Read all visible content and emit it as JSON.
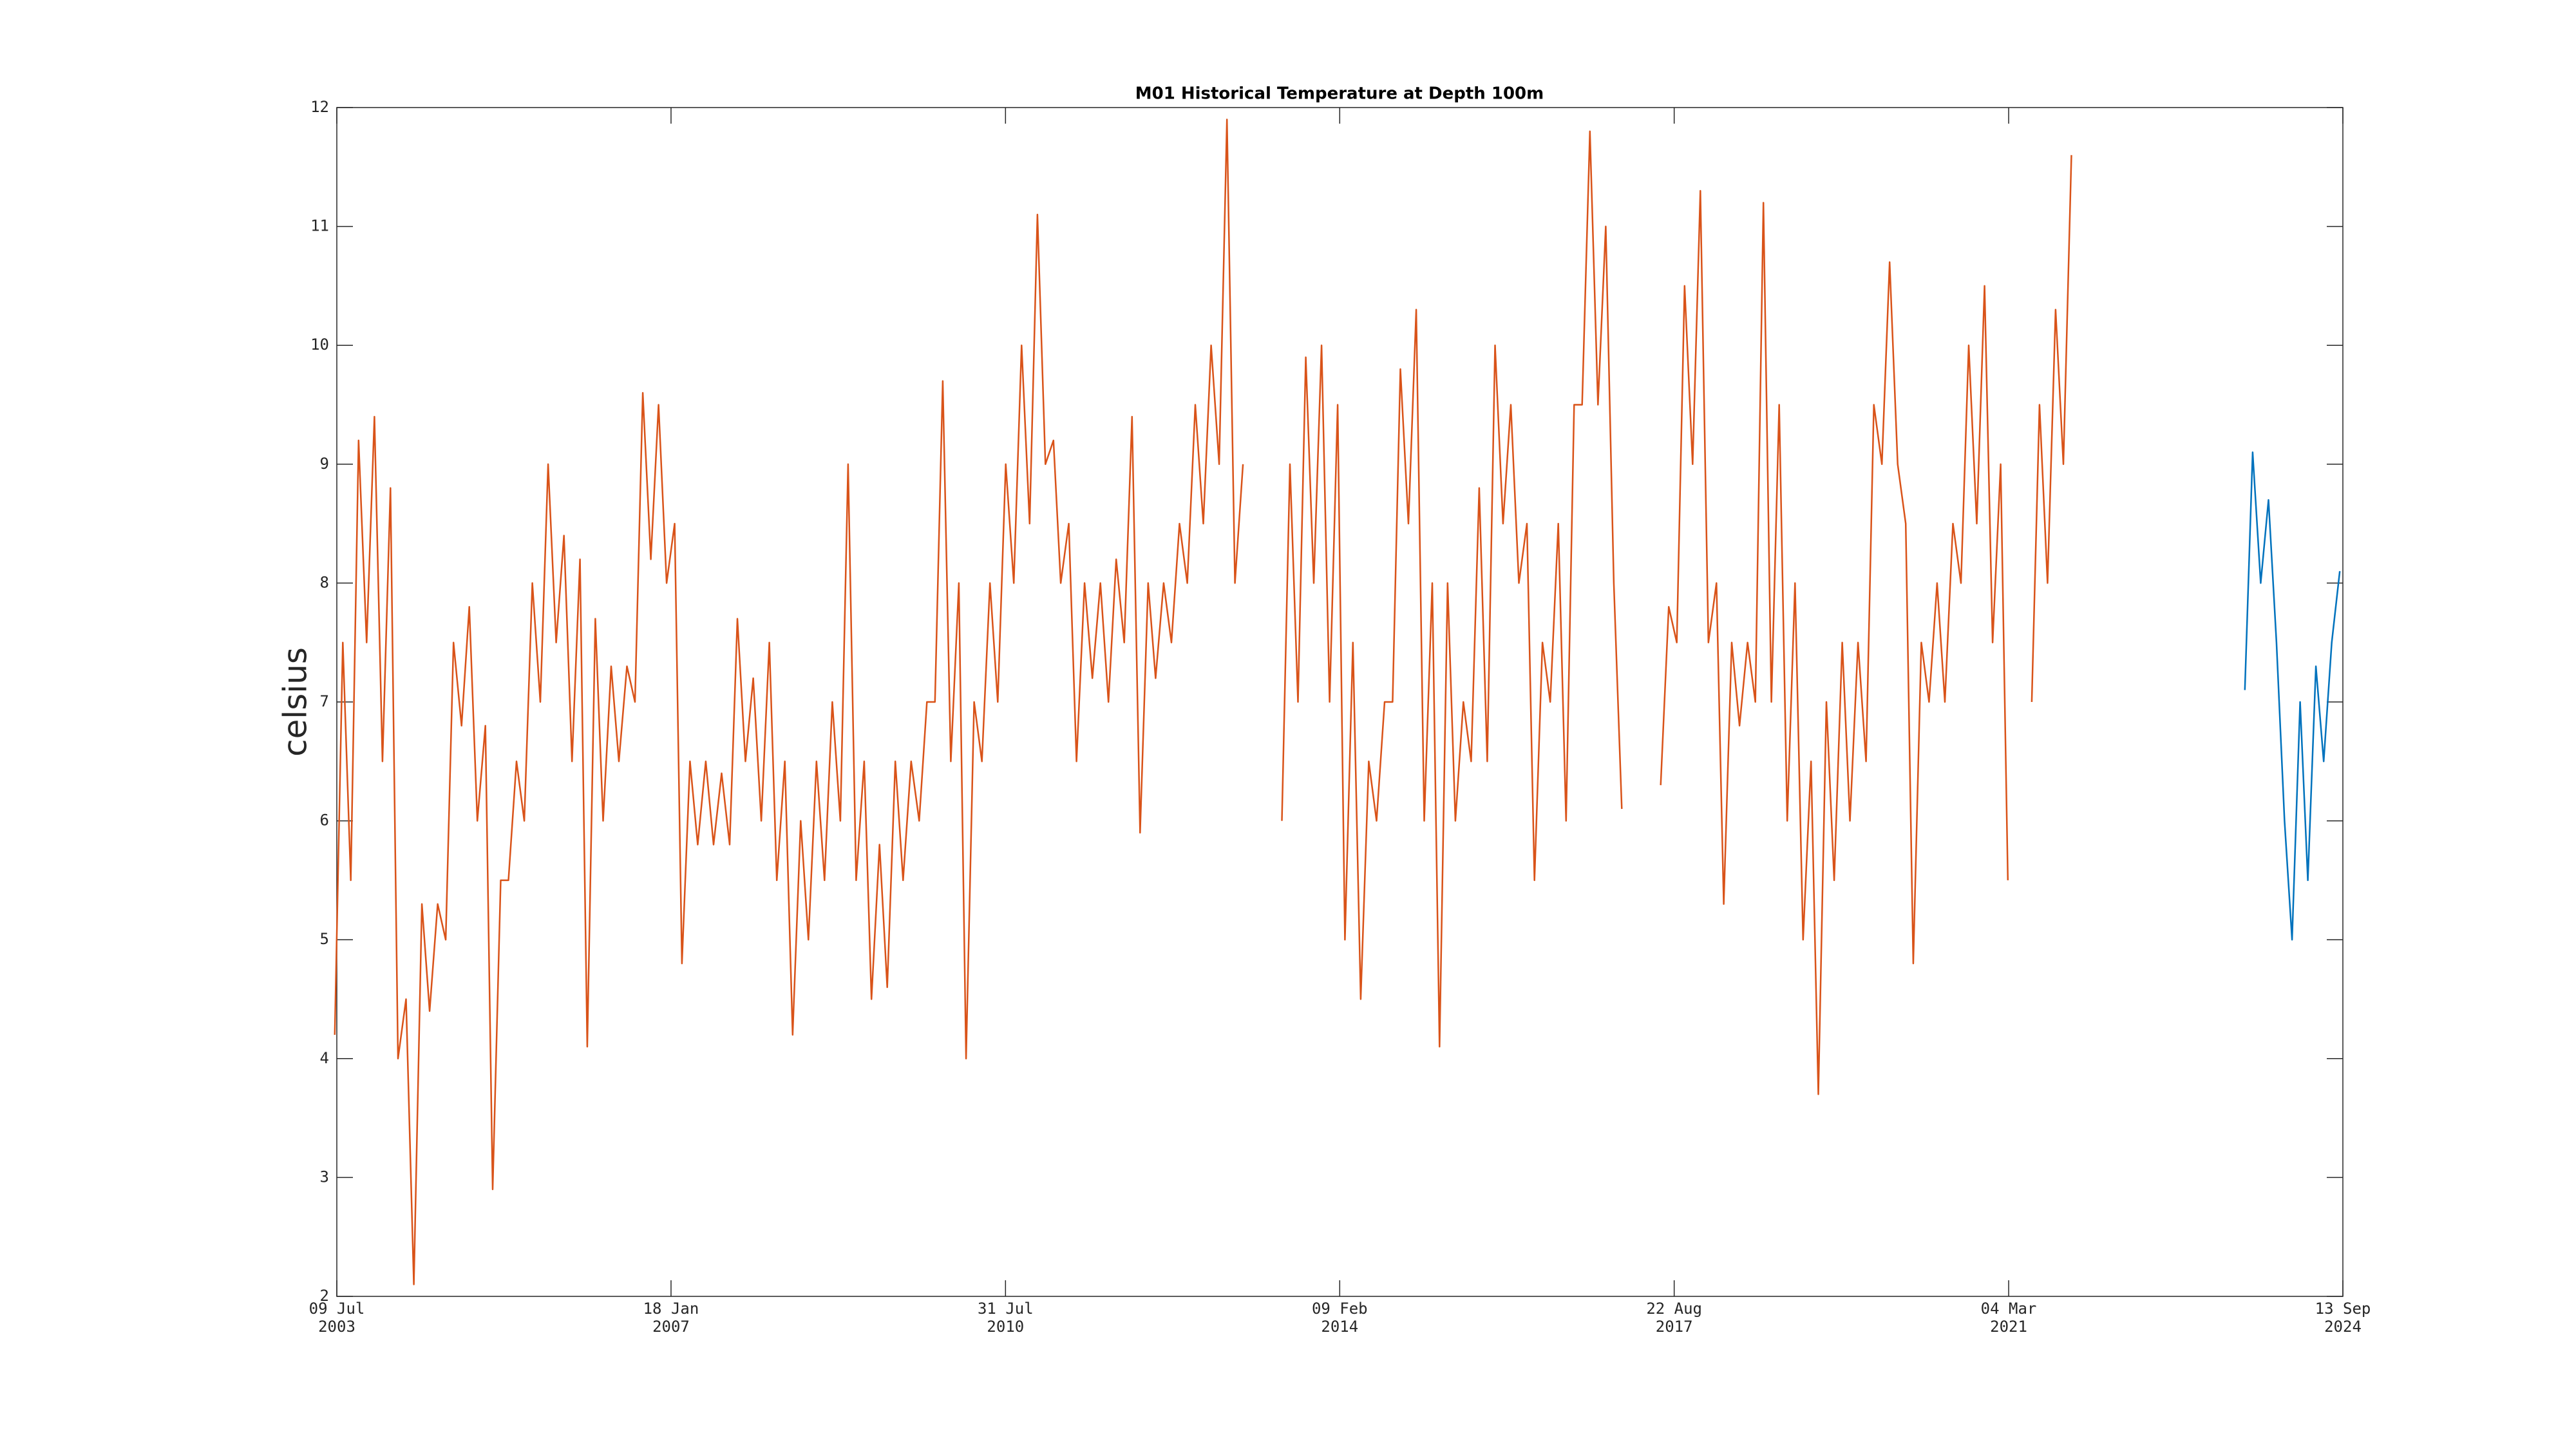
{
  "chart_data": {
    "type": "line",
    "title": "M01 Historical Temperature at Depth 100m",
    "ylabel": "celsius",
    "xlim": [
      "2003-07-09",
      "2024-09-13"
    ],
    "xticks": [
      {
        "value": "2003-07-09",
        "label": [
          "09 Jul",
          "2003"
        ]
      },
      {
        "value": "2007-01-18",
        "label": [
          "18 Jan",
          "2007"
        ]
      },
      {
        "value": "2010-07-31",
        "label": [
          "31 Jul",
          "2010"
        ]
      },
      {
        "value": "2014-02-09",
        "label": [
          "09 Feb",
          "2014"
        ]
      },
      {
        "value": "2017-08-22",
        "label": [
          "22 Aug",
          "2017"
        ]
      },
      {
        "value": "2021-03-04",
        "label": [
          "04 Mar",
          "2021"
        ]
      },
      {
        "value": "2024-09-13",
        "label": [
          "13 Sep",
          "2024"
        ]
      }
    ],
    "ylim": [
      2,
      12
    ],
    "yticks": [
      2,
      3,
      4,
      5,
      6,
      7,
      8,
      9,
      10,
      11,
      12
    ],
    "grid": false,
    "series": [
      {
        "color": "#d95319",
        "x": [
          "2003-07",
          "2003-08",
          "2003-09",
          "2003-10",
          "2003-11",
          "2003-12",
          "2004-01",
          "2004-02",
          "2004-03",
          "2004-04",
          "2004-05",
          "2004-06",
          "2004-07",
          "2004-08",
          "2004-09",
          "2004-10",
          "2004-11",
          "2004-12",
          "2005-01",
          "2005-02",
          "2005-03",
          "2005-04",
          "2005-05",
          "2005-06",
          "2005-07",
          "2005-08",
          "2005-09",
          "2005-10",
          "2005-11",
          "2005-12",
          "2006-01",
          "2006-02",
          "2006-03",
          "2006-04",
          "2006-05",
          "2006-06",
          "2006-07",
          "2006-08",
          "2006-09",
          "2006-10",
          "2006-11",
          "2006-12",
          "2007-01",
          "2007-02",
          "2007-03",
          "2007-04",
          "2007-05",
          "2007-06",
          "2007-07",
          "2007-08",
          "2007-09",
          "2007-10",
          "2007-11",
          "2007-12",
          "2008-01",
          "2008-02",
          "2008-03",
          "2008-04",
          "2008-05",
          "2008-06",
          "2008-07",
          "2008-08",
          "2008-09",
          "2008-10",
          "2008-11",
          "2008-12",
          "2009-01",
          "2009-02",
          "2009-03",
          "2009-04",
          "2009-05",
          "2009-06",
          "2009-07",
          "2009-08",
          "2009-09",
          "2009-10",
          "2009-11",
          "2009-12",
          "2010-01",
          "2010-02",
          "2010-03",
          "2010-04",
          "2010-05",
          "2010-06",
          "2010-07",
          "2010-08",
          "2010-09",
          "2010-10",
          "2010-11",
          "2010-12",
          "2011-01",
          "2011-02",
          "2011-03",
          "2011-04",
          "2011-05",
          "2011-06",
          "2011-07",
          "2011-08",
          "2011-09",
          "2011-10",
          "2011-11",
          "2011-12",
          "2012-01",
          "2012-02",
          "2012-03",
          "2012-04",
          "2012-05",
          "2012-06",
          "2012-07",
          "2012-08",
          "2012-09",
          "2012-10",
          "2012-11",
          "2012-12",
          "2013-01",
          "2013-02",
          "2013-03",
          "2013-04",
          "2013-05",
          "2013-06",
          "2013-07",
          "2013-08",
          "2013-09",
          "2013-10",
          "2013-11",
          "2013-12",
          "2014-01",
          "2014-02",
          "2014-03",
          "2014-04",
          "2014-05",
          "2014-06",
          "2014-07",
          "2014-08",
          "2014-09",
          "2014-10",
          "2014-11",
          "2014-12",
          "2015-01",
          "2015-02",
          "2015-03",
          "2015-04",
          "2015-05",
          "2015-06",
          "2015-07",
          "2015-08",
          "2015-09",
          "2015-10",
          "2015-11",
          "2015-12",
          "2016-01",
          "2016-02",
          "2016-03",
          "2016-04",
          "2016-05",
          "2016-06",
          "2016-07",
          "2016-08",
          "2016-09",
          "2016-10",
          "2016-11",
          "2016-12",
          "2017-01",
          "2017-02",
          "2017-03",
          "2017-04",
          "2017-05",
          "2017-06",
          "2017-07",
          "2017-08",
          "2017-09",
          "2017-10",
          "2017-11",
          "2017-12",
          "2018-01",
          "2018-02",
          "2018-03",
          "2018-04",
          "2018-05",
          "2018-06",
          "2018-07",
          "2018-08",
          "2018-09",
          "2018-10",
          "2018-11",
          "2018-12",
          "2019-01",
          "2019-02",
          "2019-03",
          "2019-04",
          "2019-05",
          "2019-06",
          "2019-07",
          "2019-08",
          "2019-09",
          "2019-10",
          "2019-11",
          "2019-12",
          "2020-01",
          "2020-02",
          "2020-03",
          "2020-04",
          "2020-05",
          "2020-06",
          "2020-07",
          "2020-08",
          "2020-09",
          "2020-10",
          "2020-11",
          "2020-12",
          "2021-01",
          "2021-02",
          "2021-03",
          "2021-04",
          "2021-05",
          "2021-06",
          "2021-07",
          "2021-08",
          "2021-09",
          "2021-10",
          "2021-11"
        ],
        "values": [
          4.2,
          7.5,
          5.5,
          9.2,
          7.5,
          9.4,
          6.5,
          8.8,
          4.0,
          4.5,
          2.1,
          5.3,
          4.4,
          5.3,
          5.0,
          7.5,
          6.8,
          7.8,
          6.0,
          6.8,
          2.9,
          5.5,
          5.5,
          6.5,
          6.0,
          8.0,
          7.0,
          9.0,
          7.5,
          8.4,
          6.5,
          8.2,
          4.1,
          7.7,
          6.0,
          7.3,
          6.5,
          7.3,
          7.0,
          9.6,
          8.2,
          9.5,
          8.0,
          8.5,
          4.8,
          6.5,
          5.8,
          6.5,
          5.8,
          6.4,
          5.8,
          7.7,
          6.5,
          7.2,
          6.0,
          7.5,
          5.5,
          6.5,
          4.2,
          6.0,
          5.0,
          6.5,
          5.5,
          7.0,
          6.0,
          9.0,
          5.5,
          6.5,
          4.5,
          5.8,
          4.6,
          6.5,
          5.5,
          6.5,
          6.0,
          7.0,
          7.0,
          9.7,
          6.5,
          8.0,
          4.0,
          7.0,
          6.5,
          8.0,
          7.0,
          9.0,
          8.0,
          10.0,
          8.5,
          11.1,
          9.0,
          9.2,
          8.0,
          8.5,
          6.5,
          8.0,
          7.2,
          8.0,
          7.0,
          8.2,
          7.5,
          9.4,
          5.9,
          8.0,
          7.2,
          8.0,
          7.5,
          8.5,
          8.0,
          9.5,
          8.5,
          10.0,
          9.0,
          11.9,
          8.0,
          9.0,
          null,
          null,
          null,
          null,
          6.0,
          9.0,
          7.0,
          9.9,
          8.0,
          10.0,
          7.0,
          9.5,
          5.0,
          7.5,
          4.5,
          6.5,
          6.0,
          7.0,
          7.0,
          9.8,
          8.5,
          10.3,
          6.0,
          8.0,
          4.1,
          8.0,
          6.0,
          7.0,
          6.5,
          8.8,
          6.5,
          10.0,
          8.5,
          9.5,
          8.0,
          8.5,
          5.5,
          7.5,
          7.0,
          8.5,
          6.0,
          9.5,
          9.5,
          11.8,
          9.5,
          11.0,
          8.0,
          6.1,
          null,
          null,
          null,
          null,
          6.3,
          7.8,
          7.5,
          10.5,
          9.0,
          11.3,
          7.5,
          8.0,
          5.3,
          7.5,
          6.8,
          7.5,
          7.0,
          11.2,
          7.0,
          9.5,
          6.0,
          8.0,
          5.0,
          6.5,
          3.7,
          7.0,
          5.5,
          7.5,
          6.0,
          7.5,
          6.5,
          9.5,
          9.0,
          10.7,
          9.0,
          8.5,
          4.8,
          7.5,
          7.0,
          8.0,
          7.0,
          8.5,
          8.0,
          10.0,
          8.5,
          10.5,
          7.5,
          9.0,
          5.5,
          null,
          null,
          7.0,
          9.5,
          8.0,
          10.3,
          9.0,
          11.6
        ]
      },
      {
        "color": "#0072bd",
        "x": [
          "2023-09",
          "2023-10",
          "2023-11",
          "2023-12",
          "2024-01",
          "2024-02",
          "2024-03",
          "2024-04",
          "2024-05",
          "2024-06",
          "2024-07",
          "2024-08",
          "2024-09"
        ],
        "values": [
          7.1,
          9.1,
          8.0,
          8.7,
          7.5,
          6.0,
          5.0,
          7.0,
          5.5,
          7.3,
          6.5,
          7.5,
          8.1
        ]
      }
    ]
  }
}
